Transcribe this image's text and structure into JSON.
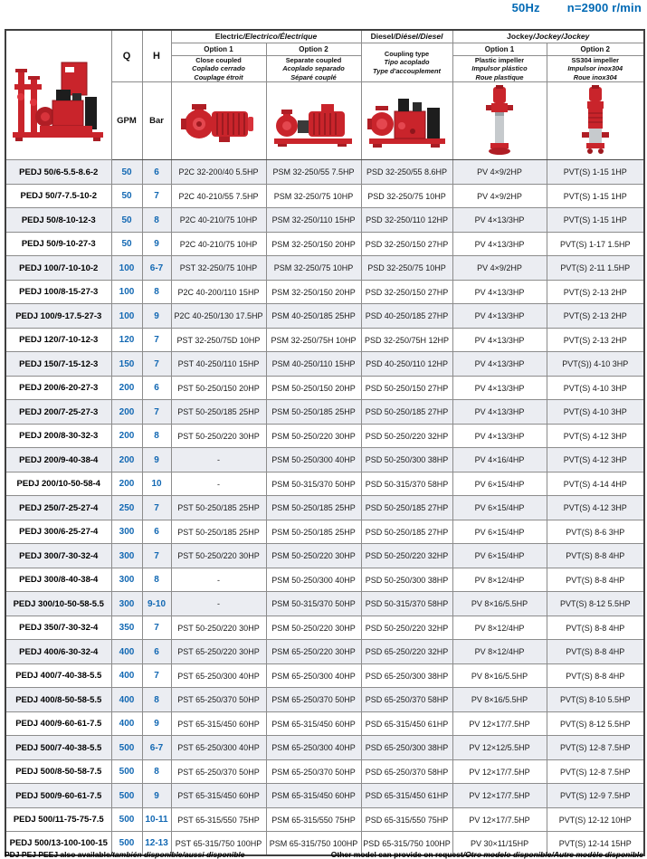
{
  "page": {
    "frequency": "50Hz",
    "speed": "n=2900 r/min"
  },
  "colors": {
    "accent_blue": "#0069b4",
    "pump_red": "#c9242b",
    "row_shade": "#ebedf2",
    "border": "#8c8c8c",
    "border_dark": "#3f3f3f"
  },
  "images": {
    "package": "diesel-fire-pump-set-photo",
    "electric1": "close-coupled-pump-photo",
    "electric2": "separate-coupled-pump-photo",
    "diesel": "diesel-engine-pump-photo",
    "jockey1": "vertical-jockey-pump-photo",
    "jockey2": "ss304-vertical-jockey-pump-photo"
  },
  "table": {
    "q_label": "Q",
    "h_label": "H",
    "q_unit": "GPM",
    "h_unit": "Bar",
    "groups": {
      "electric": {
        "en": "Electric",
        "i18n": "/Electrico/Électrique"
      },
      "diesel": {
        "en": "Diesel",
        "i18n": "/Diésel/Diesel"
      },
      "jockey": {
        "en": "Jockey",
        "i18n": "/Jockey/Jockey"
      }
    },
    "options": {
      "option1": "Option 1",
      "option2": "Option 2"
    },
    "descs": {
      "electric1": {
        "en": "Close coupled",
        "es": "Coplado cerrado",
        "fr": "Couplage étroit"
      },
      "electric2": {
        "en": "Separate coupled",
        "es": "Acoplado separado",
        "fr": "Séparé couplé"
      },
      "diesel": {
        "en": "Coupling type",
        "es": "Tipo acoplado",
        "fr": "Type d'accouplement"
      },
      "jockey1": {
        "en": "Plastic impeller",
        "es": "Impulsor plástico",
        "fr": "Roue plastique"
      },
      "jockey2": {
        "en": "SS304 impeller",
        "es": "Impulsor inox304",
        "fr": "Roue inox304"
      }
    },
    "rows": [
      {
        "model": "PEDJ 50/6-5.5-8.6-2",
        "q": "50",
        "h": "6",
        "electric1": "P2C 32-200/40 5.5HP",
        "electric2": "PSM 32-250/55 7.5HP",
        "diesel": "PSD 32-250/55 8.6HP",
        "jockey1": "PV 4×9/2HP",
        "jockey2": "PVT(S) 1-15 1HP"
      },
      {
        "model": "PEDJ 50/7-7.5-10-2",
        "q": "50",
        "h": "7",
        "electric1": "P2C 40-210/55 7.5HP",
        "electric2": "PSM 32-250/75 10HP",
        "diesel": "PSD 32-250/75 10HP",
        "jockey1": "PV 4×9/2HP",
        "jockey2": "PVT(S) 1-15 1HP"
      },
      {
        "model": "PEDJ 50/8-10-12-3",
        "q": "50",
        "h": "8",
        "electric1": "P2C 40-210/75 10HP",
        "electric2": "PSM 32-250/110 15HP",
        "diesel": "PSD 32-250/110 12HP",
        "jockey1": "PV 4×13/3HP",
        "jockey2": "PVT(S) 1-15 1HP"
      },
      {
        "model": "PEDJ 50/9-10-27-3",
        "q": "50",
        "h": "9",
        "electric1": "P2C 40-210/75 10HP",
        "electric2": "PSM 32-250/150 20HP",
        "diesel": "PSD 32-250/150 27HP",
        "jockey1": "PV 4×13/3HP",
        "jockey2": "PVT(S) 1-17 1.5HP"
      },
      {
        "model": "PEDJ 100/7-10-10-2",
        "q": "100",
        "h": "6-7",
        "electric1": "PST 32-250/75 10HP",
        "electric2": "PSM 32-250/75 10HP",
        "diesel": "PSD 32-250/75 10HP",
        "jockey1": "PV 4×9/2HP",
        "jockey2": "PVT(S) 2-11 1.5HP"
      },
      {
        "model": "PEDJ 100/8-15-27-3",
        "q": "100",
        "h": "8",
        "electric1": "P2C 40-200/110 15HP",
        "electric2": "PSM 32-250/150 20HP",
        "diesel": "PSD 32-250/150 27HP",
        "jockey1": "PV 4×13/3HP",
        "jockey2": "PVT(S) 2-13 2HP"
      },
      {
        "model": "PEDJ 100/9-17.5-27-3",
        "q": "100",
        "h": "9",
        "electric1": "P2C 40-250/130 17.5HP",
        "electric2": "PSM 40-250/185 25HP",
        "diesel": "PSD 40-250/185 27HP",
        "jockey1": "PV 4×13/3HP",
        "jockey2": "PVT(S) 2-13 2HP"
      },
      {
        "model": "PEDJ 120/7-10-12-3",
        "q": "120",
        "h": "7",
        "electric1": "PST 32-250/75D 10HP",
        "electric2": "PSM 32-250/75H 10HP",
        "diesel": "PSD 32-250/75H 12HP",
        "jockey1": "PV 4×13/3HP",
        "jockey2": "PVT(S) 2-13 2HP"
      },
      {
        "model": "PEDJ 150/7-15-12-3",
        "q": "150",
        "h": "7",
        "electric1": "PST 40-250/110 15HP",
        "electric2": "PSM 40-250/110 15HP",
        "diesel": "PSD 40-250/110 12HP",
        "jockey1": "PV 4×13/3HP",
        "jockey2": "PVT(S)) 4-10 3HP"
      },
      {
        "model": "PEDJ 200/6-20-27-3",
        "q": "200",
        "h": "6",
        "electric1": "PST 50-250/150 20HP",
        "electric2": "PSM 50-250/150 20HP",
        "diesel": "PSD 50-250/150 27HP",
        "jockey1": "PV 4×13/3HP",
        "jockey2": "PVT(S) 4-10 3HP"
      },
      {
        "model": "PEDJ 200/7-25-27-3",
        "q": "200",
        "h": "7",
        "electric1": "PST 50-250/185 25HP",
        "electric2": "PSM 50-250/185 25HP",
        "diesel": "PSD 50-250/185 27HP",
        "jockey1": "PV 4×13/3HP",
        "jockey2": "PVT(S) 4-10 3HP"
      },
      {
        "model": "PEDJ 200/8-30-32-3",
        "q": "200",
        "h": "8",
        "electric1": "PST 50-250/220 30HP",
        "electric2": "PSM 50-250/220 30HP",
        "diesel": "PSD 50-250/220 32HP",
        "jockey1": "PV 4×13/3HP",
        "jockey2": "PVT(S) 4-12 3HP"
      },
      {
        "model": "PEDJ 200/9-40-38-4",
        "q": "200",
        "h": "9",
        "electric1": "-",
        "electric2": "PSM 50-250/300 40HP",
        "diesel": "PSD 50-250/300 38HP",
        "jockey1": "PV 4×16/4HP",
        "jockey2": "PVT(S) 4-12 3HP"
      },
      {
        "model": "PEDJ 200/10-50-58-4",
        "q": "200",
        "h": "10",
        "electric1": "-",
        "electric2": "PSM 50-315/370 50HP",
        "diesel": "PSD 50-315/370 58HP",
        "jockey1": "PV 6×15/4HP",
        "jockey2": "PVT(S) 4-14 4HP"
      },
      {
        "model": "PEDJ 250/7-25-27-4",
        "q": "250",
        "h": "7",
        "electric1": "PST 50-250/185 25HP",
        "electric2": "PSM 50-250/185 25HP",
        "diesel": "PSD 50-250/185 27HP",
        "jockey1": "PV 6×15/4HP",
        "jockey2": "PVT(S) 4-12 3HP"
      },
      {
        "model": "PEDJ 300/6-25-27-4",
        "q": "300",
        "h": "6",
        "electric1": "PST 50-250/185 25HP",
        "electric2": "PSM 50-250/185 25HP",
        "diesel": "PSD 50-250/185 27HP",
        "jockey1": "PV 6×15/4HP",
        "jockey2": "PVT(S) 8-6 3HP"
      },
      {
        "model": "PEDJ 300/7-30-32-4",
        "q": "300",
        "h": "7",
        "electric1": "PST 50-250/220 30HP",
        "electric2": "PSM 50-250/220 30HP",
        "diesel": "PSD 50-250/220 32HP",
        "jockey1": "PV 6×15/4HP",
        "jockey2": "PVT(S) 8-8 4HP"
      },
      {
        "model": "PEDJ 300/8-40-38-4",
        "q": "300",
        "h": "8",
        "electric1": "-",
        "electric2": "PSM 50-250/300 40HP",
        "diesel": "PSD 50-250/300 38HP",
        "jockey1": "PV 8×12/4HP",
        "jockey2": "PVT(S) 8-8 4HP"
      },
      {
        "model": "PEDJ 300/10-50-58-5.5",
        "q": "300",
        "h": "9-10",
        "electric1": "-",
        "electric2": "PSM 50-315/370 50HP",
        "diesel": "PSD 50-315/370 58HP",
        "jockey1": "PV 8×16/5.5HP",
        "jockey2": "PVT(S) 8-12 5.5HP"
      },
      {
        "model": "PEDJ 350/7-30-32-4",
        "q": "350",
        "h": "7",
        "electric1": "PST 50-250/220 30HP",
        "electric2": "PSM 50-250/220 30HP",
        "diesel": "PSD 50-250/220 32HP",
        "jockey1": "PV 8×12/4HP",
        "jockey2": "PVT(S) 8-8 4HP"
      },
      {
        "model": "PEDJ 400/6-30-32-4",
        "q": "400",
        "h": "6",
        "electric1": "PST 65-250/220 30HP",
        "electric2": "PSM 65-250/220 30HP",
        "diesel": "PSD 65-250/220 32HP",
        "jockey1": "PV 8×12/4HP",
        "jockey2": "PVT(S) 8-8 4HP"
      },
      {
        "model": "PEDJ 400/7-40-38-5.5",
        "q": "400",
        "h": "7",
        "electric1": "PST 65-250/300 40HP",
        "electric2": "PSM 65-250/300 40HP",
        "diesel": "PSD 65-250/300 38HP",
        "jockey1": "PV 8×16/5.5HP",
        "jockey2": "PVT(S) 8-8 4HP"
      },
      {
        "model": "PEDJ 400/8-50-58-5.5",
        "q": "400",
        "h": "8",
        "electric1": "PST 65-250/370 50HP",
        "electric2": "PSM 65-250/370 50HP",
        "diesel": "PSD 65-250/370 58HP",
        "jockey1": "PV 8×16/5.5HP",
        "jockey2": "PVT(S) 8-10 5.5HP"
      },
      {
        "model": "PEDJ 400/9-60-61-7.5",
        "q": "400",
        "h": "9",
        "electric1": "PST 65-315/450 60HP",
        "electric2": "PSM 65-315/450 60HP",
        "diesel": "PSD 65-315/450 61HP",
        "jockey1": "PV 12×17/7.5HP",
        "jockey2": "PVT(S) 8-12 5.5HP"
      },
      {
        "model": "PEDJ 500/7-40-38-5.5",
        "q": "500",
        "h": "6-7",
        "electric1": "PST 65-250/300 40HP",
        "electric2": "PSM 65-250/300 40HP",
        "diesel": "PSD 65-250/300 38HP",
        "jockey1": "PV 12×12/5.5HP",
        "jockey2": "PVT(S) 12-8 7.5HP"
      },
      {
        "model": "PEDJ 500/8-50-58-7.5",
        "q": "500",
        "h": "8",
        "electric1": "PST 65-250/370 50HP",
        "electric2": "PSM 65-250/370 50HP",
        "diesel": "PSD 65-250/370 58HP",
        "jockey1": "PV 12×17/7.5HP",
        "jockey2": "PVT(S) 12-8 7.5HP"
      },
      {
        "model": "PEDJ 500/9-60-61-7.5",
        "q": "500",
        "h": "9",
        "electric1": "PST 65-315/450 60HP",
        "electric2": "PSM 65-315/450 60HP",
        "diesel": "PSD 65-315/450 61HP",
        "jockey1": "PV 12×17/7.5HP",
        "jockey2": "PVT(S) 12-9 7.5HP"
      },
      {
        "model": "PEDJ 500/11-75-75-7.5",
        "q": "500",
        "h": "10-11",
        "electric1": "PST 65-315/550 75HP",
        "electric2": "PSM 65-315/550 75HP",
        "diesel": "PSD 65-315/550 75HP",
        "jockey1": "PV 12×17/7.5HP",
        "jockey2": "PVT(S) 12-12 10HP"
      },
      {
        "model": "PEDJ 500/13-100-100-15",
        "q": "500",
        "h": "12-13",
        "electric1": "PST 65-315/750 100HP",
        "electric2": "PSM 65-315/750 100HP",
        "diesel": "PSD 65-315/750 100HP",
        "jockey1": "PV 30×11/15HP",
        "jockey2": "PVT(S) 12-14 15HP"
      }
    ]
  },
  "footer": {
    "left_bold": "PDJ PEJ PEEJ also available",
    "left_italic": "/también disponible/aussi disponible",
    "right_bold": "Other model can provide on request",
    "right_italic": "/Otro modelo disponible/Autre modèle disponible"
  }
}
